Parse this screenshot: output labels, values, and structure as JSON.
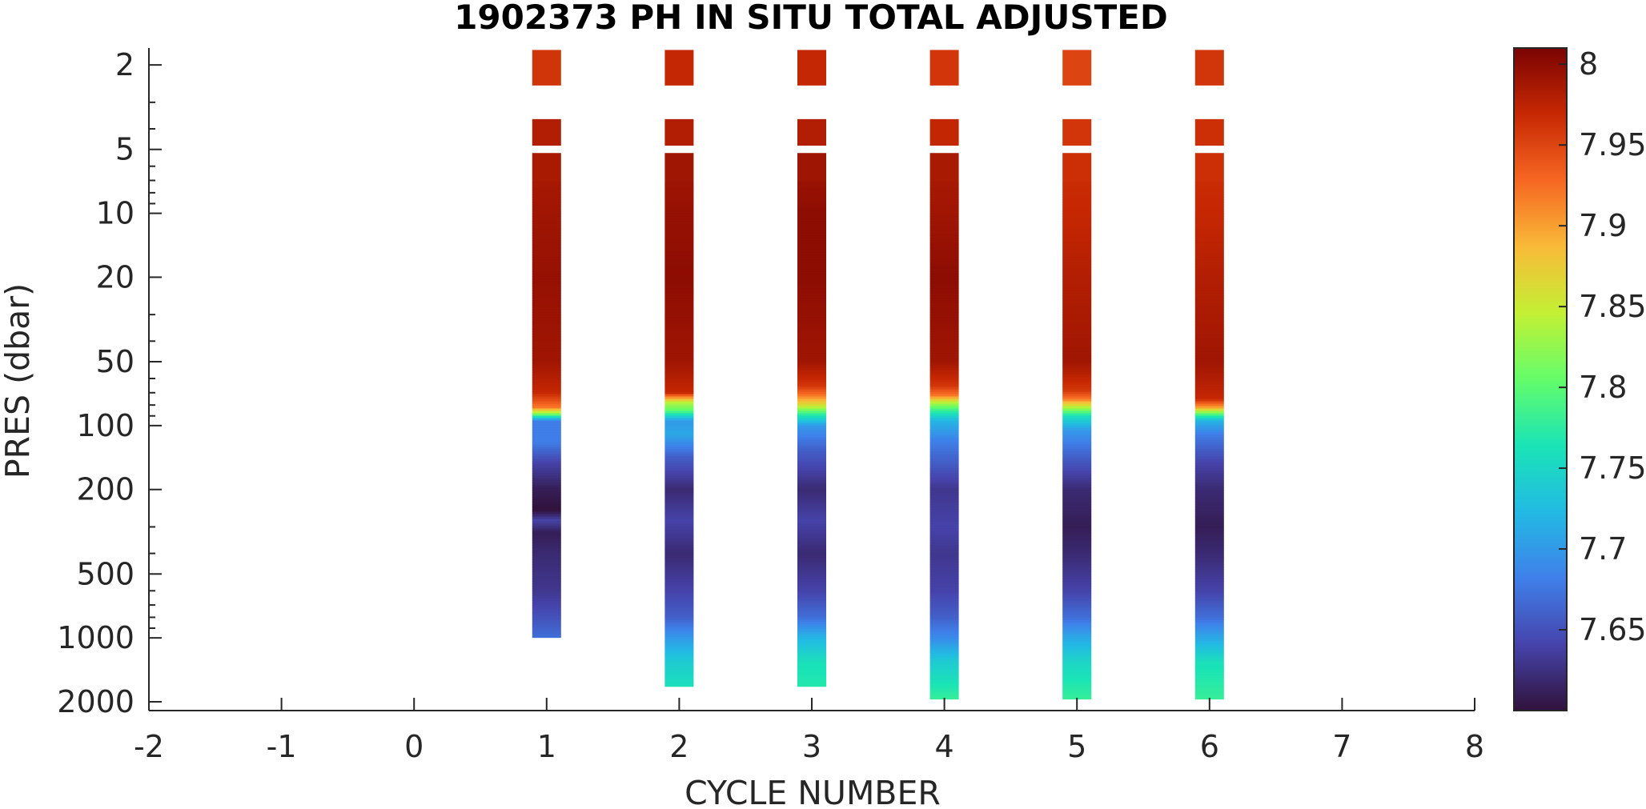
{
  "chart_data": {
    "type": "heatmap",
    "title": "1902373  PH IN SITU TOTAL ADJUSTED",
    "xlabel": "CYCLE NUMBER",
    "ylabel": "PRES (dbar)",
    "xlim": [
      -2,
      8
    ],
    "ylim": [
      1.5,
      2200
    ],
    "y_scale": "log",
    "y_reversed": true,
    "x_ticks": [
      "-2",
      "-1",
      "0",
      "1",
      "2",
      "3",
      "4",
      "5",
      "6",
      "7",
      "8"
    ],
    "y_ticks": [
      "2",
      "5",
      "10",
      "20",
      "50",
      "100",
      "200",
      "500",
      "1000",
      "2000"
    ],
    "colorbar": {
      "range": [
        7.6,
        8.01
      ],
      "ticks": [
        "7.65",
        "7.7",
        "7.75",
        "7.8",
        "7.85",
        "7.9",
        "7.95",
        "8"
      ],
      "colormap": "turbo"
    },
    "grid": false,
    "profiles": [
      {
        "cycle": 1,
        "max_pres": 1000,
        "values": [
          [
            2,
            7.96
          ],
          [
            4,
            7.98
          ],
          [
            6,
            7.985
          ],
          [
            10,
            7.99
          ],
          [
            20,
            7.995
          ],
          [
            50,
            7.99
          ],
          [
            70,
            7.97
          ],
          [
            82,
            7.92
          ],
          [
            88,
            7.82
          ],
          [
            95,
            7.68
          ],
          [
            120,
            7.68
          ],
          [
            150,
            7.64
          ],
          [
            200,
            7.61
          ],
          [
            250,
            7.6
          ],
          [
            280,
            7.64
          ],
          [
            320,
            7.61
          ],
          [
            400,
            7.62
          ],
          [
            600,
            7.63
          ],
          [
            800,
            7.65
          ],
          [
            1000,
            7.67
          ]
        ]
      },
      {
        "cycle": 2,
        "max_pres": 1700,
        "values": [
          [
            2,
            7.97
          ],
          [
            4,
            7.98
          ],
          [
            6,
            7.99
          ],
          [
            10,
            7.995
          ],
          [
            20,
            8.0
          ],
          [
            50,
            7.99
          ],
          [
            70,
            7.97
          ],
          [
            78,
            7.84
          ],
          [
            85,
            7.8
          ],
          [
            95,
            7.7
          ],
          [
            110,
            7.71
          ],
          [
            140,
            7.66
          ],
          [
            200,
            7.62
          ],
          [
            280,
            7.64
          ],
          [
            400,
            7.62
          ],
          [
            600,
            7.64
          ],
          [
            800,
            7.66
          ],
          [
            1000,
            7.7
          ],
          [
            1300,
            7.74
          ],
          [
            1700,
            7.76
          ]
        ]
      },
      {
        "cycle": 3,
        "max_pres": 1700,
        "values": [
          [
            2,
            7.97
          ],
          [
            4,
            7.98
          ],
          [
            6,
            7.99
          ],
          [
            10,
            8.0
          ],
          [
            20,
            8.0
          ],
          [
            50,
            7.99
          ],
          [
            65,
            7.96
          ],
          [
            72,
            7.92
          ],
          [
            80,
            7.86
          ],
          [
            88,
            7.78
          ],
          [
            100,
            7.7
          ],
          [
            130,
            7.66
          ],
          [
            200,
            7.62
          ],
          [
            280,
            7.64
          ],
          [
            400,
            7.62
          ],
          [
            600,
            7.64
          ],
          [
            800,
            7.67
          ],
          [
            1000,
            7.72
          ],
          [
            1300,
            7.76
          ],
          [
            1700,
            7.77
          ]
        ]
      },
      {
        "cycle": 4,
        "max_pres": 1950,
        "values": [
          [
            2,
            7.96
          ],
          [
            4,
            7.97
          ],
          [
            6,
            7.985
          ],
          [
            10,
            7.99
          ],
          [
            20,
            8.0
          ],
          [
            50,
            7.99
          ],
          [
            65,
            7.96
          ],
          [
            72,
            7.92
          ],
          [
            78,
            7.84
          ],
          [
            85,
            7.78
          ],
          [
            95,
            7.72
          ],
          [
            120,
            7.68
          ],
          [
            200,
            7.63
          ],
          [
            300,
            7.64
          ],
          [
            400,
            7.63
          ],
          [
            600,
            7.64
          ],
          [
            800,
            7.66
          ],
          [
            1000,
            7.69
          ],
          [
            1300,
            7.74
          ],
          [
            1950,
            7.78
          ]
        ]
      },
      {
        "cycle": 5,
        "max_pres": 1950,
        "values": [
          [
            2,
            7.95
          ],
          [
            4,
            7.96
          ],
          [
            6,
            7.965
          ],
          [
            10,
            7.97
          ],
          [
            20,
            7.98
          ],
          [
            50,
            7.99
          ],
          [
            68,
            7.96
          ],
          [
            75,
            7.92
          ],
          [
            82,
            7.84
          ],
          [
            90,
            7.76
          ],
          [
            105,
            7.7
          ],
          [
            140,
            7.66
          ],
          [
            200,
            7.62
          ],
          [
            300,
            7.61
          ],
          [
            400,
            7.62
          ],
          [
            600,
            7.64
          ],
          [
            800,
            7.67
          ],
          [
            1000,
            7.71
          ],
          [
            1300,
            7.75
          ],
          [
            1950,
            7.78
          ]
        ]
      },
      {
        "cycle": 6,
        "max_pres": 1950,
        "values": [
          [
            2,
            7.96
          ],
          [
            4,
            7.965
          ],
          [
            6,
            7.965
          ],
          [
            10,
            7.97
          ],
          [
            20,
            7.98
          ],
          [
            50,
            7.99
          ],
          [
            75,
            7.97
          ],
          [
            82,
            7.9
          ],
          [
            88,
            7.8
          ],
          [
            95,
            7.72
          ],
          [
            110,
            7.68
          ],
          [
            150,
            7.64
          ],
          [
            200,
            7.62
          ],
          [
            300,
            7.61
          ],
          [
            400,
            7.62
          ],
          [
            600,
            7.64
          ],
          [
            800,
            7.67
          ],
          [
            1000,
            7.71
          ],
          [
            1300,
            7.76
          ],
          [
            1950,
            7.78
          ]
        ]
      }
    ]
  }
}
